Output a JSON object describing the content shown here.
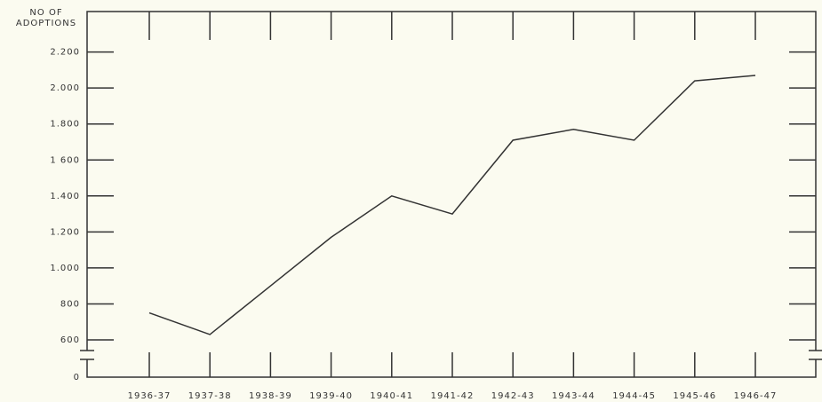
{
  "chart_data": {
    "type": "line",
    "y_label": [
      "NO OF",
      "ADOPTIONS"
    ],
    "categories": [
      "1936-37",
      "1937-38",
      "1938-39",
      "1939-40",
      "1940-41",
      "1941-42",
      "1942-43",
      "1943-44",
      "1944-45",
      "1945-46",
      "1946-47"
    ],
    "values": [
      750,
      630,
      900,
      1170,
      1400,
      1300,
      1710,
      1770,
      1710,
      2040,
      2070
    ],
    "color": "#333333",
    "ylim": [
      0,
      2425
    ],
    "yticks": [
      0,
      600,
      800,
      {
        "value": 1000,
        "label": "1.000"
      },
      {
        "value": 1200,
        "label": "1.200"
      },
      {
        "value": 1400,
        "label": "1.400"
      },
      {
        "value": 1600,
        "label": "1 600"
      },
      {
        "value": 1800,
        "label": "1.800"
      },
      {
        "value": 2000,
        "label": "2.000"
      },
      {
        "value": 2200,
        "label": "2.200"
      }
    ],
    "axis_break": true
  }
}
